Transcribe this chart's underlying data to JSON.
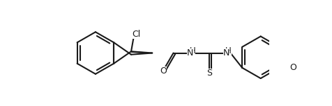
{
  "background_color": "#ffffff",
  "line_color": "#1a1a1a",
  "line_width": 1.5,
  "figsize": [
    4.77,
    1.53
  ],
  "dpi": 100,
  "xlim": [
    -0.2,
    9.5
  ],
  "ylim": [
    -2.2,
    2.8
  ]
}
